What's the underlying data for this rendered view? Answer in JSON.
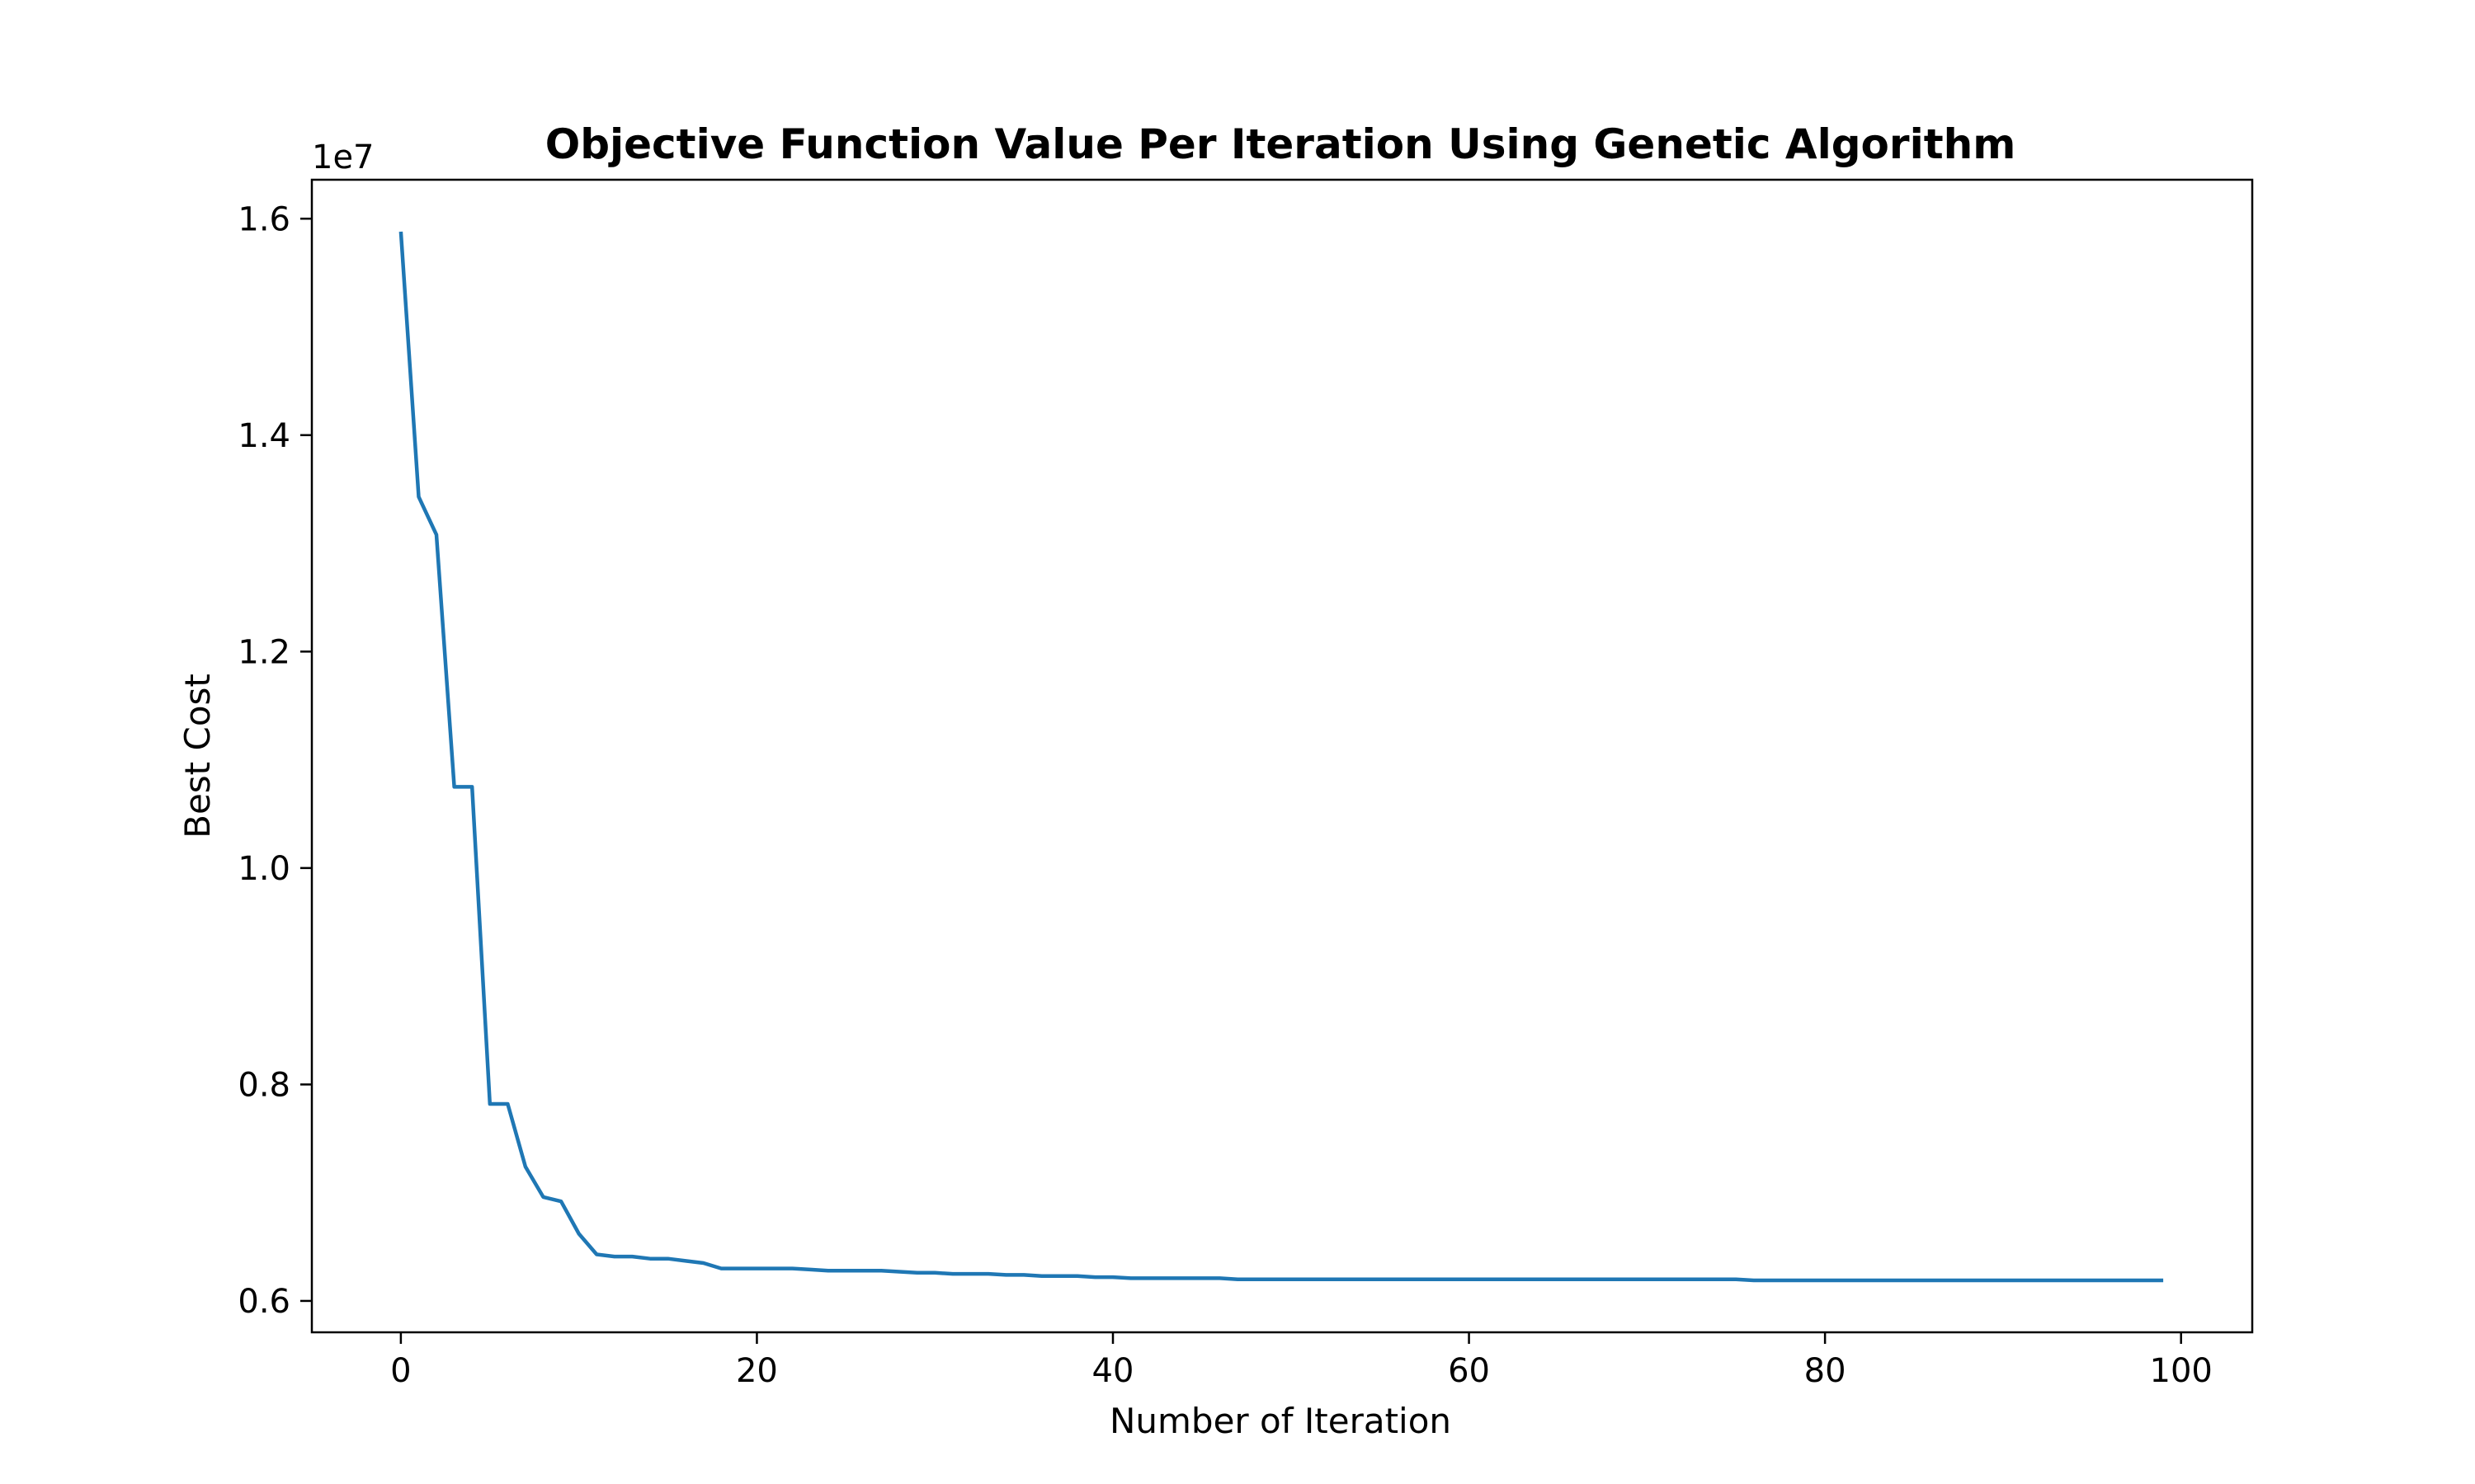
{
  "chart_data": {
    "type": "line",
    "title": "Objective Function Value Per Iteration Using Genetic Algorithm",
    "xlabel": "Number of Iteration",
    "ylabel": "Best Cost",
    "y_offset_label": "1e7",
    "xlim": [
      -5,
      104
    ],
    "ylim": [
      0.571,
      1.636
    ],
    "y_multiplier": 10000000,
    "x_ticks": [
      0,
      20,
      40,
      60,
      80,
      100
    ],
    "y_ticks": [
      0.6,
      0.8,
      1.0,
      1.2,
      1.4,
      1.6
    ],
    "grid": false,
    "legend": "none",
    "series": [
      {
        "color": "#1f77b4",
        "x": [
          0,
          1,
          2,
          3,
          4,
          5,
          6,
          7,
          8,
          9,
          10,
          11,
          12,
          13,
          14,
          15,
          16,
          17,
          18,
          19,
          20,
          21,
          22,
          23,
          24,
          25,
          26,
          27,
          28,
          29,
          30,
          31,
          32,
          33,
          34,
          35,
          36,
          37,
          38,
          39,
          40,
          41,
          42,
          43,
          44,
          45,
          46,
          47,
          48,
          49,
          50,
          51,
          52,
          53,
          54,
          55,
          56,
          57,
          58,
          59,
          60,
          61,
          62,
          63,
          64,
          65,
          66,
          67,
          68,
          69,
          70,
          71,
          72,
          73,
          74,
          75,
          76,
          77,
          78,
          79,
          80,
          81,
          82,
          83,
          84,
          85,
          86,
          87,
          88,
          89,
          90,
          91,
          92,
          93,
          94,
          95,
          96,
          97,
          98,
          99
        ],
        "y": [
          1.588,
          1.343,
          1.308,
          1.075,
          1.075,
          0.782,
          0.782,
          0.724,
          0.696,
          0.692,
          0.662,
          0.643,
          0.641,
          0.641,
          0.639,
          0.639,
          0.637,
          0.635,
          0.63,
          0.63,
          0.63,
          0.63,
          0.63,
          0.629,
          0.628,
          0.628,
          0.628,
          0.628,
          0.627,
          0.626,
          0.626,
          0.625,
          0.625,
          0.625,
          0.624,
          0.624,
          0.623,
          0.623,
          0.623,
          0.622,
          0.622,
          0.621,
          0.621,
          0.621,
          0.621,
          0.621,
          0.621,
          0.62,
          0.62,
          0.62,
          0.62,
          0.62,
          0.62,
          0.62,
          0.62,
          0.62,
          0.62,
          0.62,
          0.62,
          0.62,
          0.62,
          0.62,
          0.62,
          0.62,
          0.62,
          0.62,
          0.62,
          0.62,
          0.62,
          0.62,
          0.62,
          0.62,
          0.62,
          0.62,
          0.62,
          0.62,
          0.619,
          0.619,
          0.619,
          0.619,
          0.619,
          0.619,
          0.619,
          0.619,
          0.619,
          0.619,
          0.619,
          0.619,
          0.619,
          0.619,
          0.619,
          0.619,
          0.619,
          0.619,
          0.619,
          0.619,
          0.619,
          0.619,
          0.619,
          0.619
        ]
      }
    ]
  }
}
